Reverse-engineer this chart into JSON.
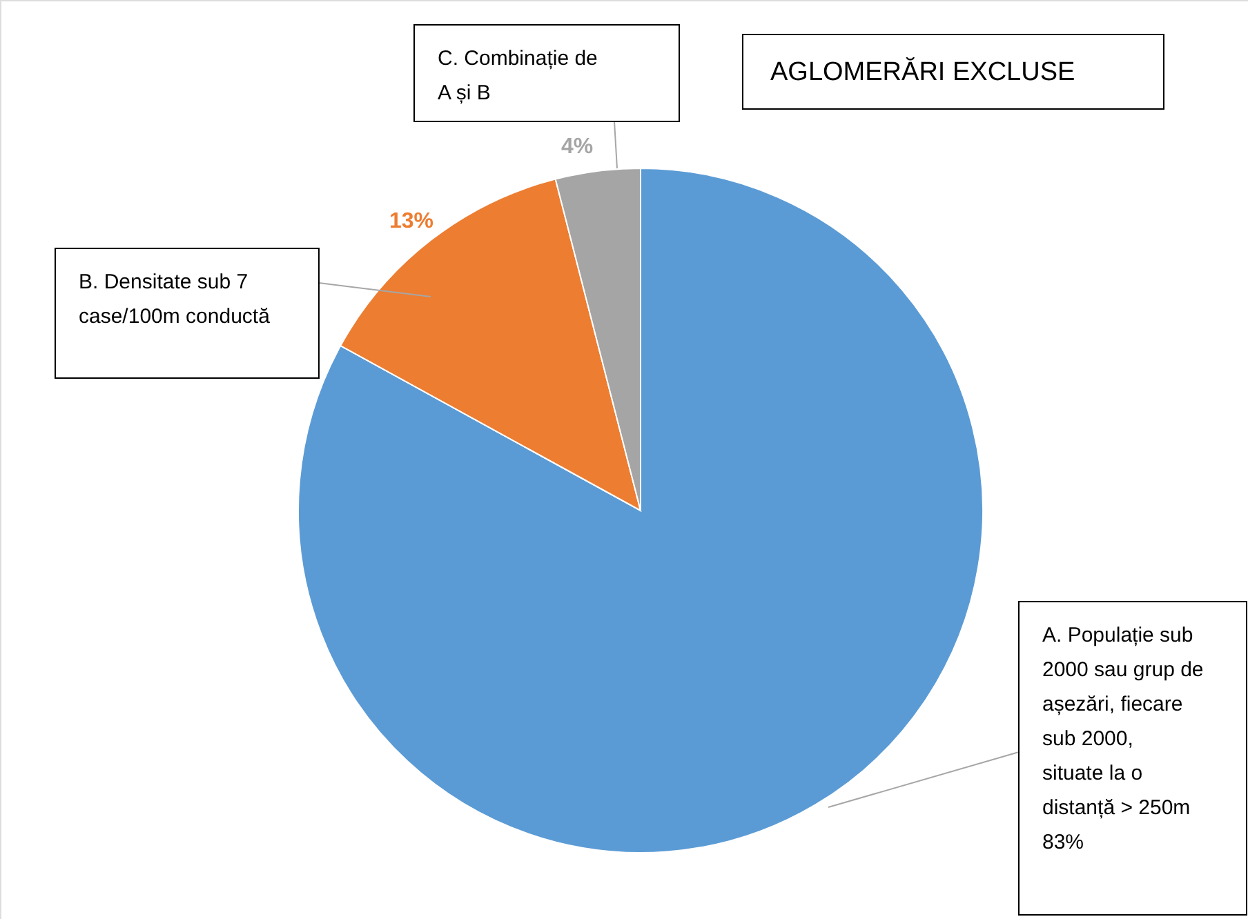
{
  "chart_data": {
    "type": "pie",
    "title": "AGLOMERĂRI EXCLUSE",
    "categories": [
      "A. Populație sub 2000 sau grup de așezări, fiecare sub 2000, situate la o distanță > 250m",
      "B. Densitate sub 7 case/100m conductă",
      "C. Combinație de A și B"
    ],
    "values": [
      83,
      13,
      4
    ],
    "colors": [
      "#5b9bd5",
      "#ed7d31",
      "#a5a5a5"
    ],
    "value_labels": [
      "83%",
      "13%",
      "4%"
    ],
    "legend": false
  }
}
